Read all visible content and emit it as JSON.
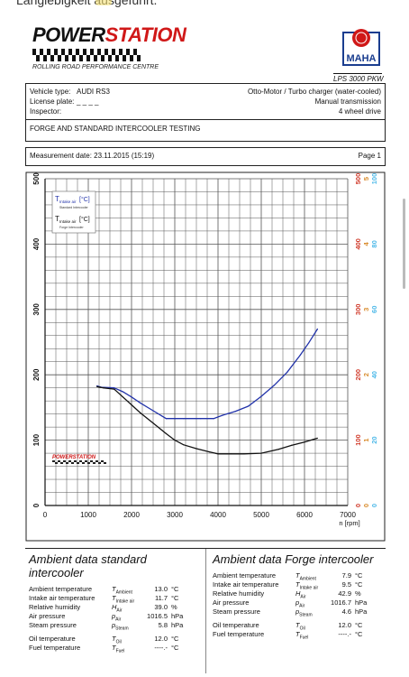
{
  "top_text": "Langlebigkeit ausgeführt.",
  "logo": {
    "word_black": "POWER",
    "word_red": "STATION",
    "subtitle": "ROLLING ROAD PERFORMANCE CENTRE"
  },
  "maha": {
    "badge": "MAHA",
    "model": "LPS 3000 PKW"
  },
  "header": {
    "vehicle_type_label": "Vehicle type:",
    "vehicle_type": "AUDI RS3",
    "license_label": "License plate:",
    "license": "_ _ _ _",
    "inspector_label": "Inspector:",
    "engine": "Otto-Motor / Turbo charger (water-cooled)",
    "transmission": "Manual transmission",
    "drive": "4 wheel drive"
  },
  "test_title": "FORGE AND STANDARD INTERCOOLER TESTING",
  "measurement": {
    "date": "Measurement date: 23.11.2015 (15:19)",
    "page": "Page 1"
  },
  "chart_data": {
    "type": "line",
    "xlabel": "n [rpm]",
    "xlim": [
      0,
      7000
    ],
    "ylim": [
      0,
      500
    ],
    "x_ticks": [
      0,
      1000,
      2000,
      3000,
      4000,
      5000,
      6000,
      7000
    ],
    "y_ticks_left": [
      0,
      100,
      200,
      300,
      400,
      500
    ],
    "y_ticks_right_red": [
      0,
      100,
      200,
      300,
      400,
      500
    ],
    "y_ticks_right_mid": [
      0,
      1,
      2,
      3,
      4,
      5
    ],
    "y_ticks_right_blue": [
      0,
      20,
      40,
      60,
      80,
      100
    ],
    "grid": true,
    "legend_position": "top-left",
    "legend": [
      {
        "symbol": "T",
        "sub": "Intake air",
        "unit": "[°C]",
        "note": "Standard Intercooler",
        "color": "#2233aa"
      },
      {
        "symbol": "T",
        "sub": "Intake air",
        "unit": "[°C]",
        "note": "Forge Intercooler",
        "color": "#111111"
      }
    ],
    "watermark": "POWERSTATION",
    "series": [
      {
        "color": "#2233aa",
        "x": [
          1200,
          1300,
          1600,
          1800,
          2000,
          2200,
          2500,
          2700,
          2800,
          3000,
          3200,
          3600,
          3900,
          4100,
          4400,
          4700,
          5000,
          5300,
          5600,
          5900,
          6100,
          6300
        ],
        "values": [
          183,
          181,
          180,
          174,
          166,
          157,
          145,
          137,
          133,
          133,
          133,
          133,
          133,
          138,
          144,
          152,
          167,
          184,
          204,
          230,
          249,
          270
        ]
      },
      {
        "color": "#111111",
        "x": [
          1200,
          1350,
          1600,
          1800,
          2000,
          2200,
          2500,
          2800,
          3000,
          3200,
          3500,
          3800,
          4000,
          4300,
          4600,
          5000,
          5400,
          5700,
          6000,
          6300
        ],
        "values": [
          182,
          180,
          178,
          166,
          154,
          142,
          126,
          110,
          100,
          93,
          87,
          82,
          79,
          79,
          79,
          80,
          86,
          92,
          97,
          103
        ]
      }
    ]
  },
  "ambient_standard": {
    "title": "Ambient data standard intercooler",
    "rows": [
      {
        "name": "Ambient temperature",
        "sym": "T",
        "sub": "Ambient",
        "val": "13.0",
        "unit": "°C"
      },
      {
        "name": "Intake air temperature",
        "sym": "T",
        "sub": "Intake air",
        "val": "11.7",
        "unit": "°C"
      },
      {
        "name": "Relative humidity",
        "sym": "H",
        "sub": "Air",
        "val": "39.0",
        "unit": "%"
      },
      {
        "name": "Air pressure",
        "sym": "p",
        "sub": "Air",
        "val": "1016.5",
        "unit": "hPa"
      },
      {
        "name": "Steam pressure",
        "sym": "p",
        "sub": "Steam",
        "val": "5.8",
        "unit": "hPa"
      },
      {
        "name": "Oil temperature",
        "sym": "T",
        "sub": "Oil",
        "val": "12.0",
        "unit": "°C"
      },
      {
        "name": "Fuel temperature",
        "sym": "T",
        "sub": "Fuel",
        "val": "----.-",
        "unit": "°C"
      }
    ]
  },
  "ambient_forge": {
    "title": "Ambient data Forge intercooler",
    "rows": [
      {
        "name": "Ambient temperature",
        "sym": "T",
        "sub": "Ambient",
        "val": "7.9",
        "unit": "°C"
      },
      {
        "name": "Intake air temperature",
        "sym": "T",
        "sub": "Intake air",
        "val": "9.5",
        "unit": "°C"
      },
      {
        "name": "Relative humidity",
        "sym": "H",
        "sub": "Air",
        "val": "42.9",
        "unit": "%"
      },
      {
        "name": "Air pressure",
        "sym": "p",
        "sub": "Air",
        "val": "1016.7",
        "unit": "hPa"
      },
      {
        "name": "Steam pressure",
        "sym": "p",
        "sub": "Steam",
        "val": "4.6",
        "unit": "hPa"
      },
      {
        "name": "Oil temperature",
        "sym": "T",
        "sub": "Oil",
        "val": "12.0",
        "unit": "°C"
      },
      {
        "name": "Fuel temperature",
        "sym": "T",
        "sub": "Fuel",
        "val": "----.-",
        "unit": "°C"
      }
    ]
  }
}
